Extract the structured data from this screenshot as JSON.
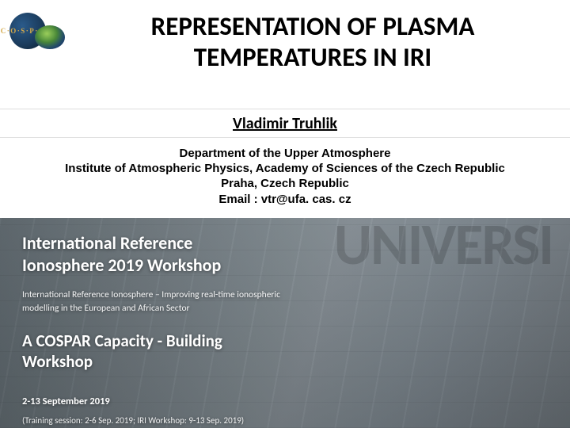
{
  "logo": {
    "badge_text": "C·O·S·P·A·R",
    "badge_bg": "#1a3a5a",
    "badge_text_color": "#d4a94a"
  },
  "title": "REPRESENTATION OF PLASMA TEMPERATURES IN IRI",
  "author": "Vladimir Truhlik",
  "affiliation": {
    "line1": "Department of the Upper Atmosphere",
    "line2": "Institute of Atmospheric Physics, Academy of Sciences of the Czech Republic",
    "line3": "Praha, Czech Republic",
    "line4": "Email : vtr@ufa. cas. cz"
  },
  "banner": {
    "university_bg_text": "UNIVERSI",
    "workshop_title_line1": "International Reference",
    "workshop_title_line2": "Ionosphere 2019 Workshop",
    "subtitle_line1": "International Reference Ionosphere – Improving real-time ionospheric",
    "subtitle_line2": "modelling in the European and African Sector",
    "cospar_line1": "A COSPAR Capacity - Building",
    "cospar_line2": "Workshop",
    "dates": "2-13 September 2019",
    "training": "(Training session: 2-6 Sep. 2019; IRI Workshop: 9-13 Sep. 2019)"
  },
  "colors": {
    "text": "#000000",
    "banner_text": "#ffffff",
    "banner_bg_from": "#5a646a",
    "banner_bg_to": "#6a7278"
  }
}
